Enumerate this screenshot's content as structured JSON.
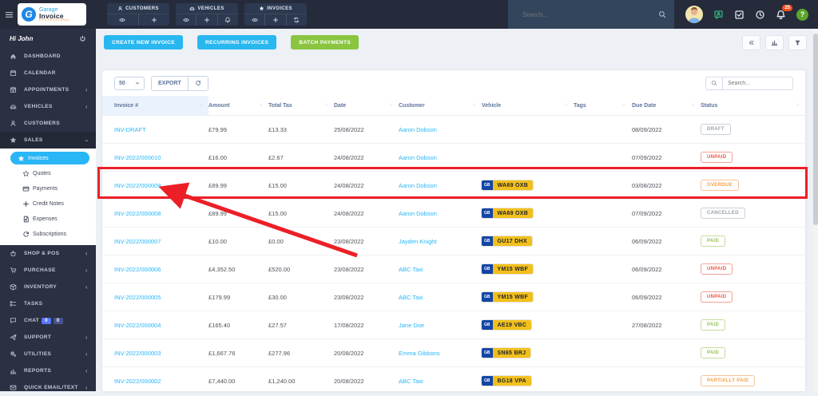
{
  "header": {
    "logo": {
      "line1": "Garage",
      "line2": "Invoice",
      "line3": "PROFESSIONAL",
      "mark": "G"
    },
    "quick_actions": [
      {
        "label": "CUSTOMERS",
        "icon": "person-icon",
        "actions": [
          "eye-icon",
          "plus-icon"
        ]
      },
      {
        "label": "VEHICLES",
        "icon": "car-icon",
        "actions": [
          "eye-icon",
          "plus-icon",
          "bell-icon"
        ]
      },
      {
        "label": "INVOICES",
        "icon": "star-icon",
        "actions": [
          "eye-icon",
          "plus-icon",
          "recurring-icon"
        ]
      }
    ],
    "search_placeholder": "Search...",
    "notification_count": "25",
    "help_label": "?"
  },
  "sidebar": {
    "greeting": "Hi John",
    "items": [
      {
        "label": "DASHBOARD",
        "icon": "home-icon"
      },
      {
        "label": "CALENDAR",
        "icon": "calendar-icon"
      },
      {
        "label": "APPOINTMENTS",
        "icon": "calendar-check-icon",
        "chevron": true
      },
      {
        "label": "VEHICLES",
        "icon": "car-icon",
        "chevron": true
      },
      {
        "label": "CUSTOMERS",
        "icon": "person-icon"
      },
      {
        "label": "SALES",
        "icon": "star-icon",
        "expanded": true,
        "submenu": [
          {
            "label": "Invoices",
            "icon": "star-icon",
            "active": true
          },
          {
            "label": "Quotes",
            "icon": "star-outline-icon"
          },
          {
            "label": "Payments",
            "icon": "credit-card-icon"
          },
          {
            "label": "Credit Notes",
            "icon": "plus-icon"
          },
          {
            "label": "Expenses",
            "icon": "document-icon"
          },
          {
            "label": "Subscriptions",
            "icon": "refresh-icon"
          }
        ]
      },
      {
        "label": "SHOP & POS",
        "icon": "basket-icon",
        "chevron": true
      },
      {
        "label": "PURCHASE",
        "icon": "cart-icon",
        "chevron": true
      },
      {
        "label": "INVENTORY",
        "icon": "box-icon",
        "chevron": true
      },
      {
        "label": "TASKS",
        "icon": "tasks-icon"
      },
      {
        "label": "CHAT",
        "icon": "chat-icon",
        "badges": [
          {
            "text": "0",
            "color": "#5677fc"
          },
          {
            "text": "0",
            "color": "#49538f"
          }
        ]
      },
      {
        "label": "SUPPORT",
        "icon": "paper-plane-icon",
        "chevron": true
      },
      {
        "label": "UTILITIES",
        "icon": "gears-icon",
        "chevron": true
      },
      {
        "label": "REPORTS",
        "icon": "chart-icon",
        "chevron": true
      },
      {
        "label": "QUICK EMAIL/TEXT",
        "icon": "envelope-icon",
        "chevron": true
      }
    ]
  },
  "toolbar": {
    "buttons": [
      "CREATE NEW INVOICE",
      "RECURRING INVOICES",
      "BATCH PAYMENTS"
    ]
  },
  "table_controls": {
    "page_size": "50",
    "export_label": "EXPORT",
    "search_placeholder": "Search..."
  },
  "table": {
    "columns": [
      "Invoice #",
      "Amount",
      "Total Tax",
      "Date",
      "Customer",
      "Vehicle",
      "Tags",
      "Due Date",
      "Status"
    ],
    "rows": [
      {
        "invoice": "INV-DRAFT",
        "amount": "£79.99",
        "tax": "£13.33",
        "date": "25/08/2022",
        "customer": "Aaron Dobson",
        "plate": "",
        "tags": "",
        "due": "08/09/2022",
        "status": "DRAFT",
        "status_type": "draft"
      },
      {
        "invoice": "INV-2022/000010",
        "amount": "£16.00",
        "tax": "£2.67",
        "date": "24/08/2022",
        "customer": "Aaron Dobson",
        "plate": "",
        "tags": "",
        "due": "07/09/2022",
        "status": "UNPAID",
        "status_type": "unpaid"
      },
      {
        "invoice": "INV-2022/000009",
        "amount": "£89.99",
        "tax": "£15.00",
        "date": "24/08/2022",
        "customer": "Aaron Dobson",
        "plate": "WA69 OXB",
        "tags": "",
        "due": "03/08/2022",
        "status": "OVERDUE",
        "status_type": "overdue",
        "highlighted": true
      },
      {
        "invoice": "INV-2022/000008",
        "amount": "£89.99",
        "tax": "£15.00",
        "date": "24/08/2022",
        "customer": "Aaron Dobson",
        "plate": "WA69 OXB",
        "tags": "",
        "due": "07/09/2022",
        "status": "CANCELLED",
        "status_type": "cancelled"
      },
      {
        "invoice": "INV-2022/000007",
        "amount": "£10.00",
        "tax": "£0.00",
        "date": "23/08/2022",
        "customer": "Jayden Knight",
        "plate": "GU17 DHX",
        "tags": "",
        "due": "06/09/2022",
        "status": "PAID",
        "status_type": "paid"
      },
      {
        "invoice": "INV-2022/000006",
        "amount": "£4,352.50",
        "tax": "£520.00",
        "date": "23/08/2022",
        "customer": "ABC Taxi",
        "plate": "YM15 WBF",
        "tags": "",
        "due": "06/09/2022",
        "status": "UNPAID",
        "status_type": "unpaid"
      },
      {
        "invoice": "INV-2022/000005",
        "amount": "£179.99",
        "tax": "£30.00",
        "date": "23/08/2022",
        "customer": "ABC Taxi",
        "plate": "YM15 WBF",
        "tags": "",
        "due": "06/09/2022",
        "status": "UNPAID",
        "status_type": "unpaid"
      },
      {
        "invoice": "INV-2022/000004",
        "amount": "£165.40",
        "tax": "£27.57",
        "date": "17/08/2022",
        "customer": "Jane Doe",
        "plate": "AE19 VBC",
        "tags": "",
        "due": "27/08/2022",
        "status": "PAID",
        "status_type": "paid"
      },
      {
        "invoice": "INV-2022/000003",
        "amount": "£1,667.76",
        "tax": "£277.96",
        "date": "20/08/2022",
        "customer": "Emma Gibbons",
        "plate": "SN65 BRJ",
        "tags": "",
        "due": "",
        "status": "PAID",
        "status_type": "paid"
      },
      {
        "invoice": "INV-2022/000002",
        "amount": "£7,440.00",
        "tax": "£1,240.00",
        "date": "20/08/2022",
        "customer": "ABC Taxi",
        "plate": "BG18 VPA",
        "tags": "",
        "due": "",
        "status": "PARTIALLY PAID",
        "status_type": "partial"
      }
    ],
    "plate_country_label": "GB"
  },
  "status_styles": {
    "draft": {
      "color": "#9aa2ad",
      "border": "#c9cfd8"
    },
    "unpaid": {
      "color": "#f05545",
      "border": "#f3a097"
    },
    "overdue": {
      "color": "#f5a04a",
      "border": "#f7c397"
    },
    "cancelled": {
      "color": "#9aa2ad",
      "border": "#c9cfd8"
    },
    "paid": {
      "color": "#97c05c",
      "border": "#c4dd9b"
    },
    "partial": {
      "color": "#f5a04a",
      "border": "#f7c397"
    }
  },
  "colors": {
    "accent_blue": "#29b6f6",
    "accent_green": "#8bc540",
    "annotation_red": "#ec1f27",
    "plate_yellow": "#f2c01d",
    "plate_band_blue": "#1445a7"
  },
  "annotation": {
    "highlighted_invoice": "INV-2022/000009"
  }
}
